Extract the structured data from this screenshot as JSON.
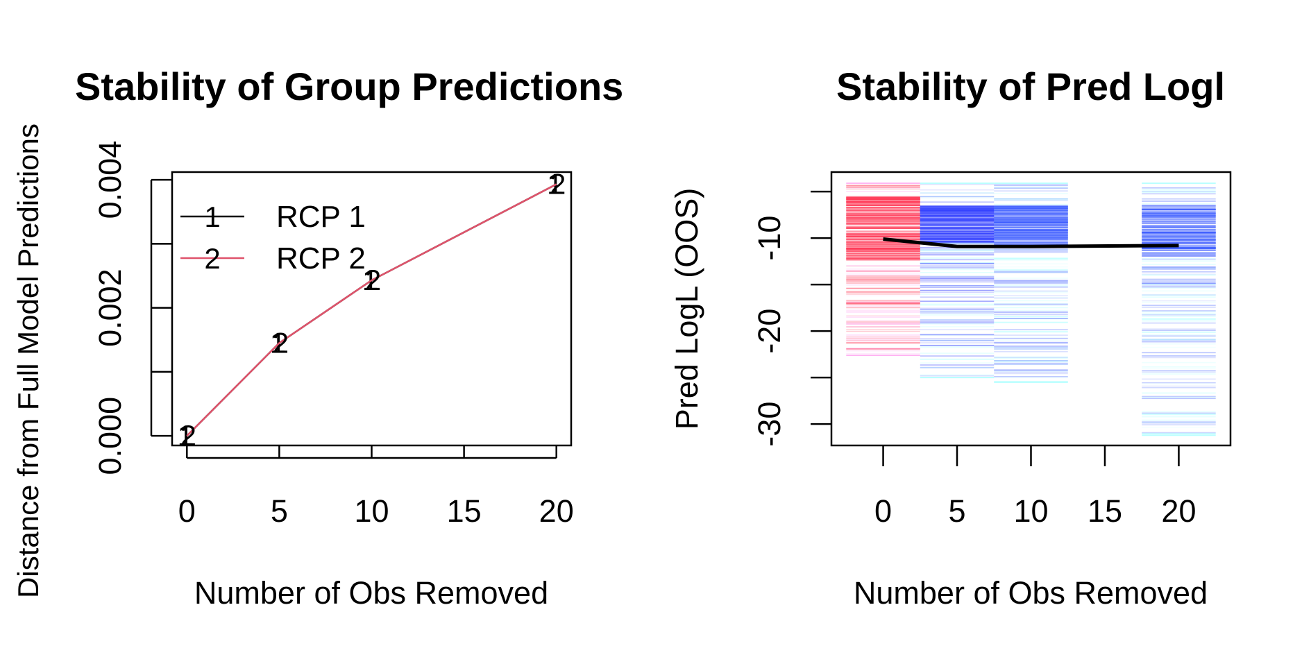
{
  "chart_data": [
    {
      "type": "line",
      "title": "Stability of Group Predictions",
      "xlabel": "Number of Obs Removed",
      "ylabel": "Distance from Full Model Predictions",
      "xlim": [
        -0.8,
        20.8
      ],
      "ylim": [
        -0.00015,
        0.00412
      ],
      "x_ticks": [
        0,
        5,
        10,
        15,
        20
      ],
      "x_tick_labels": [
        "0",
        "5",
        "10",
        "15",
        "20"
      ],
      "y_ticks": [
        0,
        0.001,
        0.002,
        0.003,
        0.004
      ],
      "y_tick_labels": [
        "0.000",
        "",
        "0.002",
        "",
        "0.004"
      ],
      "legend_position": "top-left",
      "series": [
        {
          "name": "RCP 1",
          "symbol": "1",
          "color": "#000000",
          "x": [
            0,
            5,
            10,
            20
          ],
          "values": [
            0.0,
            0.00145,
            0.00243,
            0.00393
          ]
        },
        {
          "name": "RCP 2",
          "symbol": "2",
          "color": "#DF536B",
          "x": [
            0,
            5,
            10,
            20
          ],
          "values": [
            0.0,
            0.00145,
            0.00243,
            0.00393
          ]
        }
      ]
    },
    {
      "type": "line",
      "title": "Stability of Pred Logl",
      "xlabel": "Number of Obs Removed",
      "ylabel": "Pred LogL (OOS)",
      "xlim": [
        -3.5,
        23.5
      ],
      "ylim": [
        -32.3,
        -2.9
      ],
      "x_ticks": [
        0,
        5,
        10,
        15,
        20
      ],
      "x_tick_labels": [
        "0",
        "5",
        "10",
        "15",
        "20"
      ],
      "y_ticks": [
        -5,
        -10,
        -15,
        -20,
        -25,
        -30
      ],
      "y_tick_labels": [
        "",
        "-10",
        "",
        "-20",
        "",
        "-30"
      ],
      "grid": false,
      "series": [
        {
          "x": [
            0,
            5,
            10,
            20
          ],
          "values": [
            -10.1,
            -10.9,
            -10.9,
            -10.8
          ],
          "color": "#000000"
        }
      ],
      "distributions": [
        {
          "x": 0,
          "ymin": -22.6,
          "ymax": -4.1,
          "dense_top": -5.5,
          "dense_bottom": -12.5,
          "color_dense": "#FF2A4A",
          "color_sparse": "#FFA3F0"
        },
        {
          "x": 5,
          "ymin": -25.0,
          "ymax": -4.1,
          "dense_top": -6.5,
          "dense_bottom": -10.5,
          "color_dense": "#2E3CFF",
          "color_sparse": "#A8FFFF"
        },
        {
          "x": 10,
          "ymin": -25.5,
          "ymax": -4.1,
          "dense_top": -6.5,
          "dense_bottom": -11.0,
          "color_dense": "#3A5AFF",
          "color_sparse": "#A8FFFF"
        },
        {
          "x": 20,
          "ymin": -31.2,
          "ymax": -4.1,
          "dense_top": -6.5,
          "dense_bottom": -12.0,
          "color_dense": "#3A5AFF",
          "color_sparse": "#A8FFFF"
        }
      ]
    }
  ]
}
